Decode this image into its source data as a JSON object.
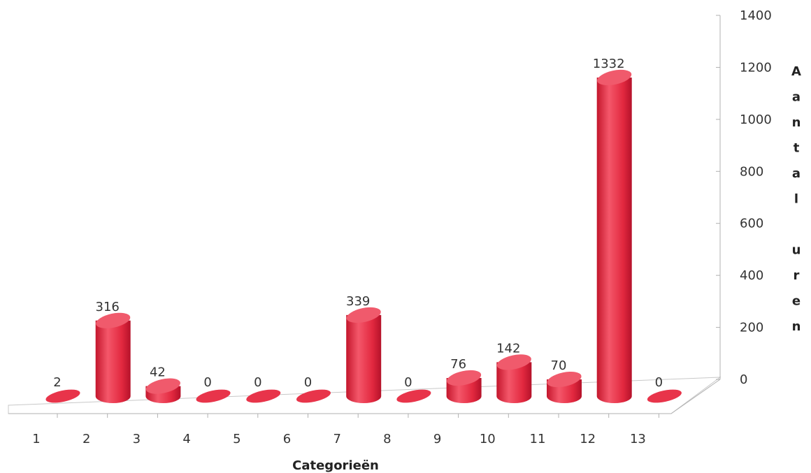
{
  "chart_data": {
    "type": "bar",
    "categories": [
      "1",
      "2",
      "3",
      "4",
      "5",
      "6",
      "7",
      "8",
      "9",
      "10",
      "11",
      "12",
      "13"
    ],
    "values": [
      2,
      316,
      42,
      0,
      0,
      0,
      339,
      0,
      76,
      142,
      70,
      1332,
      0
    ],
    "data_labels": [
      "2",
      "316",
      "42",
      "0",
      "0",
      "0",
      "339",
      "0",
      "76",
      "142",
      "70",
      "1332",
      "0"
    ],
    "y_ticks": [
      "0",
      "200",
      "400",
      "600",
      "800",
      "1000",
      "1200",
      "1400"
    ],
    "ylim": [
      0,
      1400
    ],
    "xlabel": "Categorieën",
    "ylabel": "Aantal uren",
    "ylabel_letters": [
      "A",
      "a",
      "n",
      "t",
      "a",
      "l",
      "",
      "u",
      "r",
      "e",
      "n"
    ],
    "title": "",
    "grid": false,
    "legend": "none",
    "bar_color": "#e8344a",
    "bar_top_color": "#f05a6c"
  }
}
